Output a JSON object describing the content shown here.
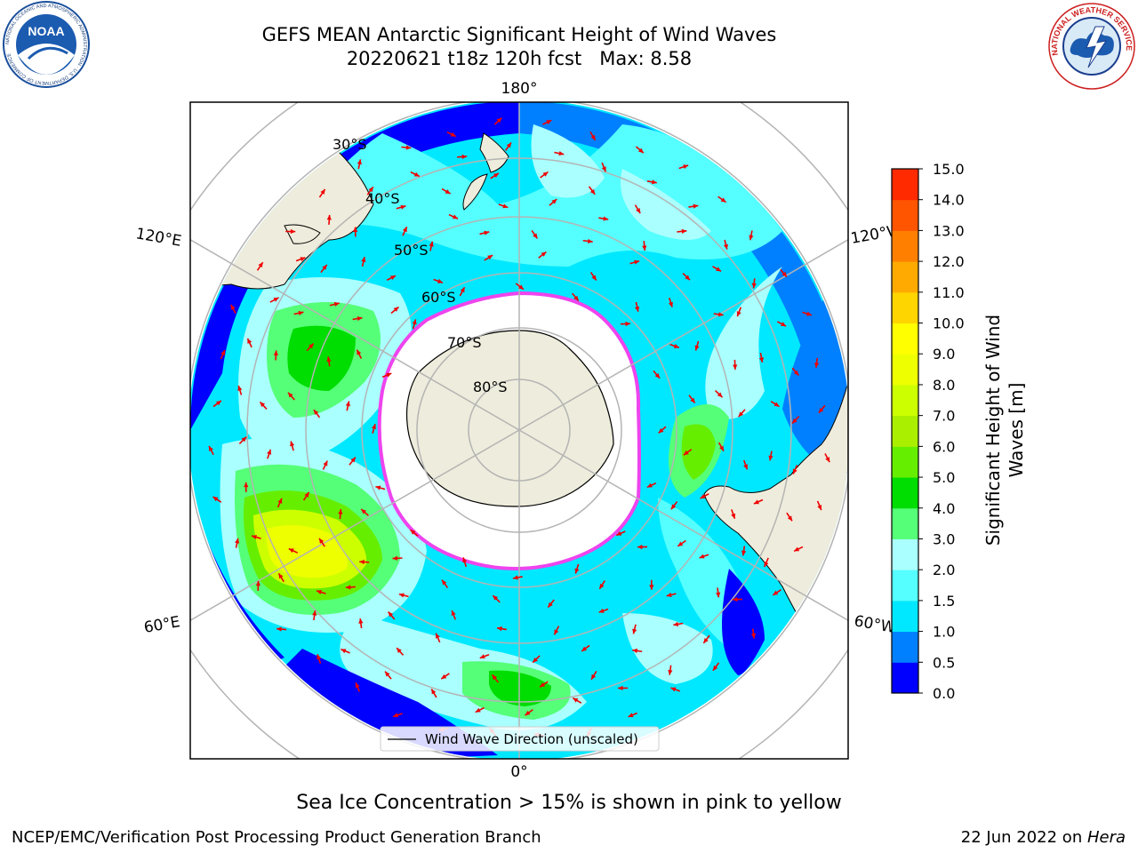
{
  "header": {
    "title_line1": "GEFS MEAN Antarctic Significant Height of Wind Waves",
    "title_line2": "20220621 t18z 120h fcst   Max: 8.58",
    "noaa_logo_text": "NOAA",
    "noaa_ring_text": "NATIONAL OCEANIC AND ATMOSPHERIC ADMINISTRATION · U.S. DEPARTMENT OF COMMERCE",
    "nws_ring_text": "NATIONAL WEATHER SERVICE"
  },
  "map": {
    "projection": "south-polar-stereographic",
    "longitude_labels": {
      "top": "180°",
      "bottom": "0°",
      "upper_left": "120°E",
      "lower_left": "60°E",
      "upper_right": "120°W",
      "lower_right": "60°W"
    },
    "latitude_labels": [
      "30°S",
      "40°S",
      "50°S",
      "60°S",
      "70°S",
      "80°S"
    ],
    "legend_label": "Wind Wave Direction (unscaled)",
    "colors": {
      "land": "#eeecdc",
      "ice": "#ffffff",
      "grid": "#b4b4b4",
      "arrow": "#ee0000",
      "ice_edge": "#ee44ee"
    }
  },
  "colorbar": {
    "label_line1": "Significant Height of Wind",
    "label_line2": "Waves [m]",
    "ticks": [
      "0.0",
      "0.5",
      "1.0",
      "1.5",
      "2.0",
      "3.0",
      "4.0",
      "5.0",
      "6.0",
      "7.0",
      "8.0",
      "9.0",
      "10.0",
      "11.0",
      "12.0",
      "13.0",
      "14.0",
      "15.0"
    ],
    "colors": [
      "#0000ff",
      "#0080ff",
      "#00e8ff",
      "#55ffff",
      "#aaffff",
      "#55ff77",
      "#00dd00",
      "#66ee00",
      "#aaee00",
      "#ccff00",
      "#eeff00",
      "#ffff00",
      "#ffd500",
      "#ffaa00",
      "#ff8000",
      "#ff5500",
      "#ff2a00"
    ]
  },
  "footer": {
    "note": "Sea Ice Concentration > 15% is shown in pink to yellow",
    "credit": "NCEP/EMC/Verification Post Processing Product Generation Branch",
    "stamp_date": "22 Jun 2022 on ",
    "stamp_host": "Hera"
  }
}
